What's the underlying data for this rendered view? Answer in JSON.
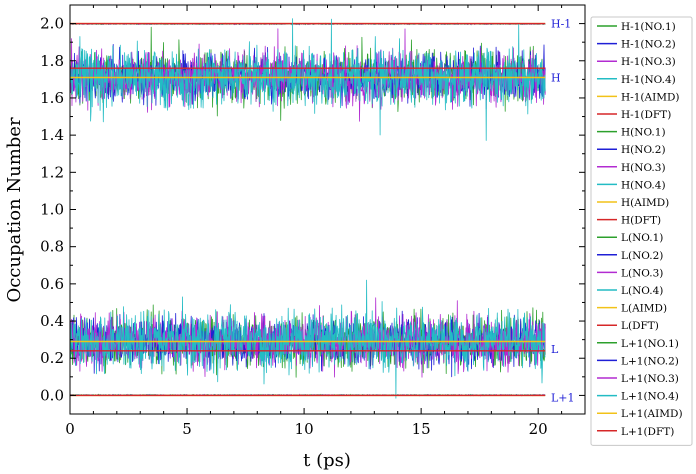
{
  "chart_data": {
    "type": "line",
    "xlabel": "t (ps)",
    "ylabel": "Occupation Number",
    "xlim": [
      0,
      22
    ],
    "ylim": [
      -0.1,
      2.1
    ],
    "x_ticks": [
      0,
      5,
      10,
      15,
      20
    ],
    "y_ticks": [
      0.0,
      0.2,
      0.4,
      0.6,
      0.8,
      1.0,
      1.2,
      1.4,
      1.6,
      1.8,
      2.0
    ],
    "x_tick_labels": [
      "0",
      "5",
      "10",
      "15",
      "20"
    ],
    "y_tick_labels": [
      "0.0",
      "0.2",
      "0.4",
      "0.6",
      "0.8",
      "1.0",
      "1.2",
      "1.4",
      "1.6",
      "1.8",
      "2.0"
    ],
    "t_end": 20.3,
    "annotations": [
      {
        "text": "H-1",
        "y": 2.0
      },
      {
        "text": "H",
        "y": 1.71
      },
      {
        "text": "L",
        "y": 0.25
      },
      {
        "text": "L+1",
        "y": -0.01
      }
    ],
    "series": [
      {
        "name": "H-1(NO.1)",
        "color": "#2ca02c",
        "kind": "noisy",
        "mean": 1.998,
        "amp": 0.004
      },
      {
        "name": "H-1(NO.2)",
        "color": "#1f1fd6",
        "kind": "noisy",
        "mean": 1.998,
        "amp": 0.004
      },
      {
        "name": "H-1(NO.3)",
        "color": "#b22bd1",
        "kind": "noisy",
        "mean": 1.998,
        "amp": 0.004
      },
      {
        "name": "H-1(NO.4)",
        "color": "#23bcc4",
        "kind": "noisy",
        "mean": 1.998,
        "amp": 0.004
      },
      {
        "name": "H-1(AIMD)",
        "color": "#f2c218",
        "kind": "flat",
        "mean": 2.0
      },
      {
        "name": "H-1(DFT)",
        "color": "#d62728",
        "kind": "flat",
        "mean": 2.0
      },
      {
        "name": "H(NO.1)",
        "color": "#2ca02c",
        "kind": "noisy",
        "mean": 1.71,
        "amp": 0.2
      },
      {
        "name": "H(NO.2)",
        "color": "#1f1fd6",
        "kind": "noisy",
        "mean": 1.71,
        "amp": 0.18
      },
      {
        "name": "H(NO.3)",
        "color": "#b22bd1",
        "kind": "noisy",
        "mean": 1.71,
        "amp": 0.2
      },
      {
        "name": "H(NO.4)",
        "color": "#23bcc4",
        "kind": "noisy",
        "mean": 1.71,
        "amp": 0.22
      },
      {
        "name": "H(AIMD)",
        "color": "#f2c218",
        "kind": "flat",
        "mean": 1.71
      },
      {
        "name": "H(DFT)",
        "color": "#d62728",
        "kind": "flat",
        "mean": 1.76
      },
      {
        "name": "L(NO.1)",
        "color": "#2ca02c",
        "kind": "noisy",
        "mean": 0.29,
        "amp": 0.2
      },
      {
        "name": "L(NO.2)",
        "color": "#1f1fd6",
        "kind": "noisy",
        "mean": 0.29,
        "amp": 0.18
      },
      {
        "name": "L(NO.3)",
        "color": "#b22bd1",
        "kind": "noisy",
        "mean": 0.29,
        "amp": 0.2
      },
      {
        "name": "L(NO.4)",
        "color": "#23bcc4",
        "kind": "noisy",
        "mean": 0.29,
        "amp": 0.22
      },
      {
        "name": "L(AIMD)",
        "color": "#f2c218",
        "kind": "flat",
        "mean": 0.29
      },
      {
        "name": "L(DFT)",
        "color": "#d62728",
        "kind": "flat",
        "mean": 0.24
      },
      {
        "name": "L+1(NO.1)",
        "color": "#2ca02c",
        "kind": "noisy",
        "mean": 0.002,
        "amp": 0.004
      },
      {
        "name": "L+1(NO.2)",
        "color": "#1f1fd6",
        "kind": "noisy",
        "mean": 0.002,
        "amp": 0.004
      },
      {
        "name": "L+1(NO.3)",
        "color": "#b22bd1",
        "kind": "noisy",
        "mean": 0.002,
        "amp": 0.004
      },
      {
        "name": "L+1(NO.4)",
        "color": "#23bcc4",
        "kind": "noisy",
        "mean": 0.002,
        "amp": 0.004
      },
      {
        "name": "L+1(AIMD)",
        "color": "#f2c218",
        "kind": "flat",
        "mean": 0.0
      },
      {
        "name": "L+1(DFT)",
        "color": "#d62728",
        "kind": "flat",
        "mean": 0.0
      }
    ]
  }
}
